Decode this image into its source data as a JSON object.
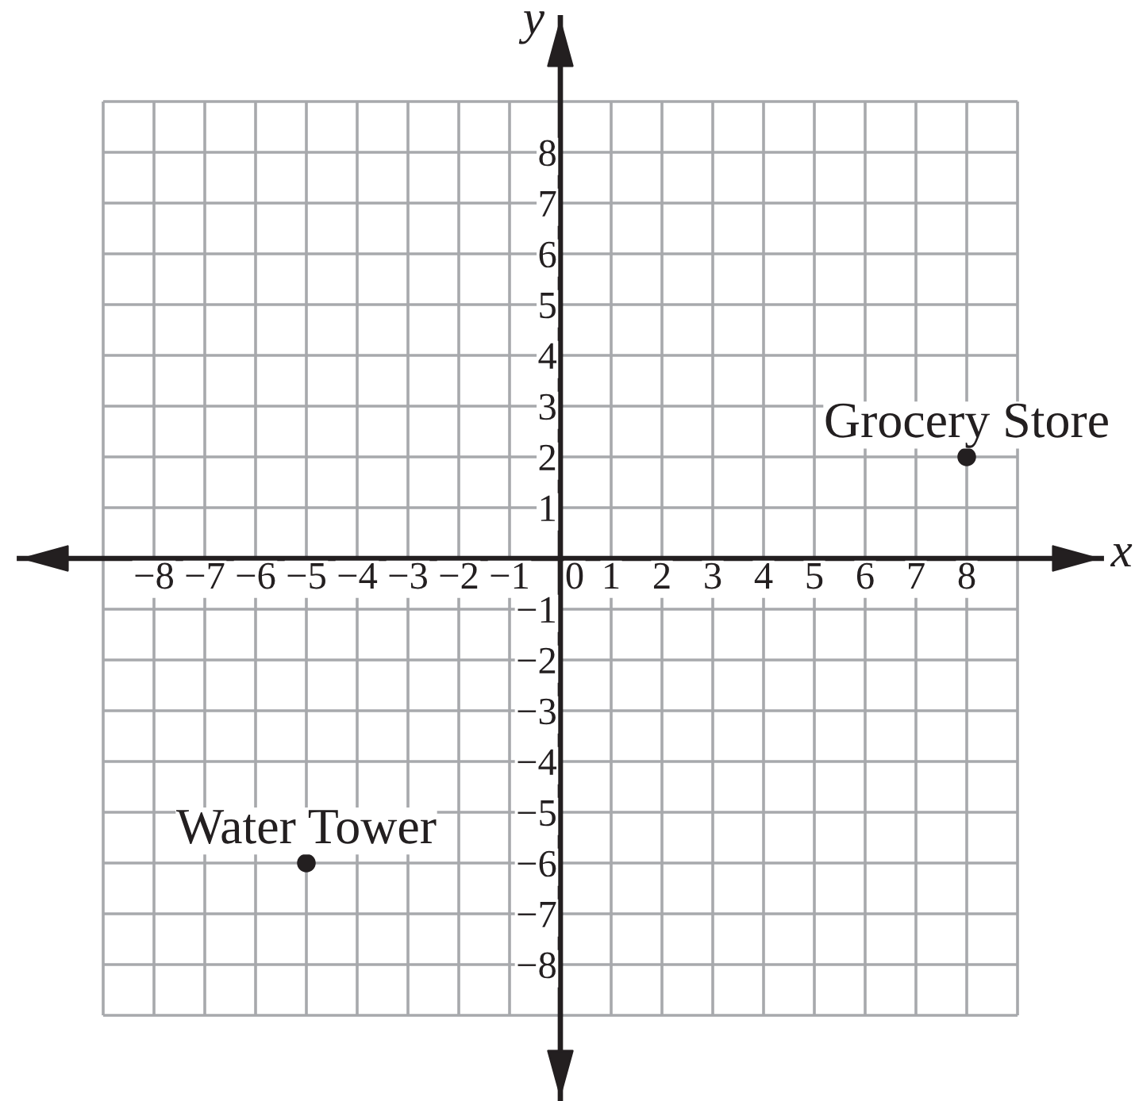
{
  "chart_data": {
    "type": "scatter",
    "xlabel": "x",
    "ylabel": "y",
    "x": [
      8,
      -5
    ],
    "values": [
      2,
      -6
    ],
    "color": "#231f20",
    "marker": "circle",
    "annotations": [
      {
        "text": "Grocery Store",
        "x": 8,
        "y": 2
      },
      {
        "text": "Water Tower",
        "x": -5,
        "y": -6
      }
    ],
    "xlim": [
      -10.65,
      10.65
    ],
    "ylim": [
      -10.65,
      10.65
    ],
    "xticks": [
      {
        "value": -9,
        "label": null
      },
      -8,
      -7,
      -6,
      -5,
      -4,
      -3,
      -2,
      -1,
      0,
      1,
      2,
      3,
      4,
      5,
      6,
      7,
      8,
      {
        "value": 9,
        "label": null
      }
    ],
    "yticks": [
      {
        "value": -9,
        "label": null
      },
      -8,
      -7,
      -6,
      -5,
      -4,
      -3,
      -2,
      -1,
      {
        "value": 0,
        "label": null
      },
      1,
      2,
      3,
      4,
      5,
      6,
      7,
      8,
      {
        "value": 9,
        "label": null
      }
    ],
    "grid": true
  }
}
